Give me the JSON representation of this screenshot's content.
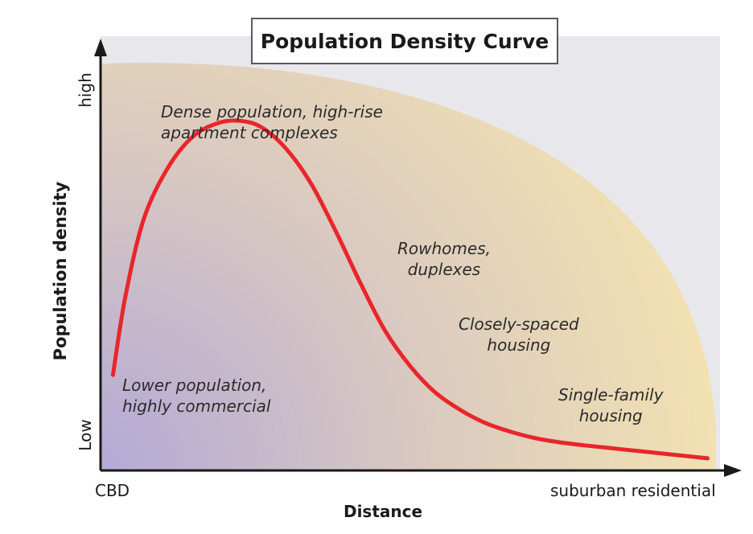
{
  "chart_data": {
    "type": "line",
    "title": "Population Density Curve",
    "xlabel": "Distance",
    "ylabel": "Population density",
    "x_tick_labels": [
      "CBD",
      "suburban residential"
    ],
    "y_tick_labels": [
      "Low",
      "high"
    ],
    "xlim": [
      0,
      1
    ],
    "ylim": [
      0,
      1
    ],
    "grid": false,
    "series": [
      {
        "color": "#e8262b",
        "x": [
          0.02,
          0.04,
          0.07,
          0.11,
          0.15,
          0.19,
          0.225,
          0.26,
          0.3,
          0.34,
          0.38,
          0.42,
          0.46,
          0.5,
          0.54,
          0.58,
          0.62,
          0.66,
          0.7,
          0.74,
          0.78,
          0.82,
          0.86,
          0.9,
          0.94,
          0.98
        ],
        "y": [
          0.22,
          0.4,
          0.58,
          0.7,
          0.77,
          0.8,
          0.805,
          0.79,
          0.74,
          0.66,
          0.55,
          0.43,
          0.32,
          0.24,
          0.18,
          0.14,
          0.11,
          0.09,
          0.075,
          0.065,
          0.058,
          0.052,
          0.046,
          0.04,
          0.034,
          0.028
        ]
      }
    ],
    "annotations": [
      {
        "lines": [
          "Lower population,",
          "highly commercial"
        ]
      },
      {
        "lines": [
          "Dense population, high-rise",
          "apartment complexes"
        ]
      },
      {
        "lines": [
          "Rowhomes,",
          "duplexes"
        ]
      },
      {
        "lines": [
          "Closely-spaced",
          "housing"
        ]
      },
      {
        "lines": [
          "Single-family",
          "housing"
        ]
      }
    ]
  },
  "colors": {
    "plot_background": "#e8e8ec",
    "fill_light": "#f3e2b0",
    "fill_dark": "#b3a9d6",
    "curve": "#e8262b",
    "axis": "#1a1a1a"
  }
}
